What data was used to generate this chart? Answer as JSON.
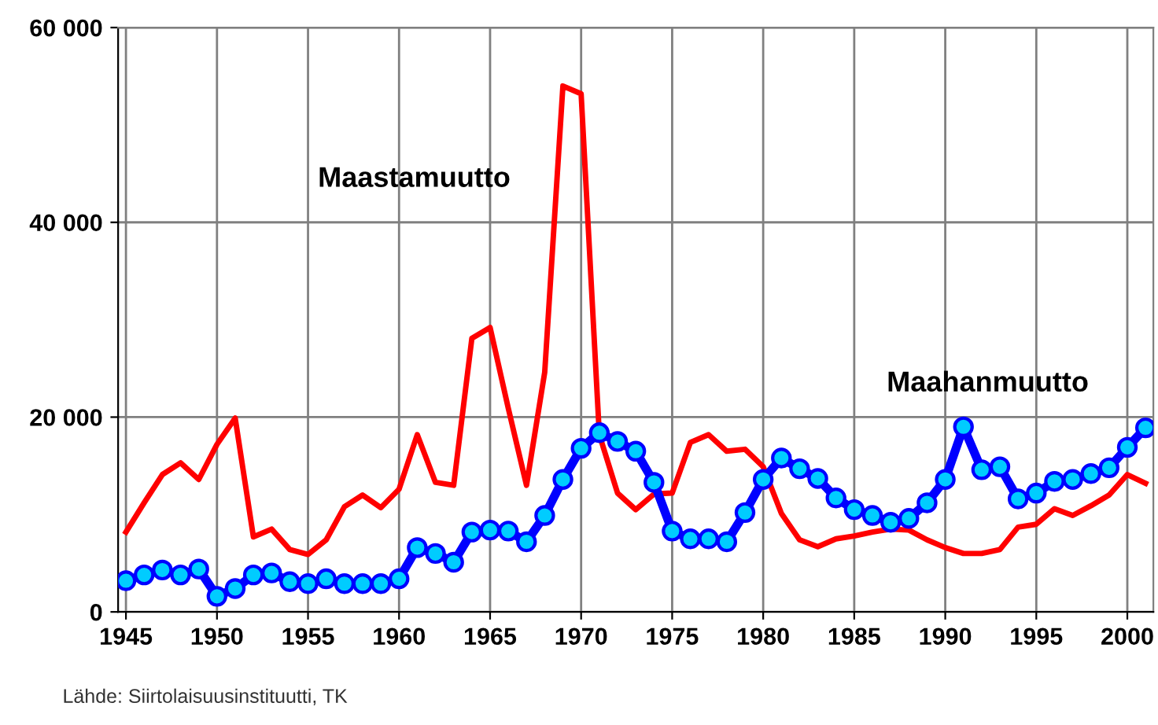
{
  "chart_data": {
    "type": "line",
    "x": [
      1945,
      1946,
      1947,
      1948,
      1949,
      1950,
      1951,
      1952,
      1953,
      1954,
      1955,
      1956,
      1957,
      1958,
      1959,
      1960,
      1961,
      1962,
      1963,
      1964,
      1965,
      1966,
      1967,
      1968,
      1969,
      1970,
      1971,
      1972,
      1973,
      1974,
      1975,
      1976,
      1977,
      1978,
      1979,
      1980,
      1981,
      1982,
      1983,
      1984,
      1985,
      1986,
      1987,
      1988,
      1989,
      1990,
      1991,
      1992,
      1993,
      1994,
      1995,
      1996,
      1997,
      1998,
      1999,
      2000,
      2001
    ],
    "series": [
      {
        "name": "Maastamuutto",
        "color": "#ff0000",
        "marker": "none",
        "values": [
          8200,
          11200,
          14100,
          15300,
          13600,
          17200,
          19900,
          7700,
          8500,
          6400,
          5900,
          7400,
          10800,
          12000,
          10700,
          12600,
          18200,
          13300,
          13000,
          28100,
          29200,
          20900,
          13000,
          24600,
          54000,
          53200,
          18200,
          12200,
          10500,
          12100,
          12200,
          17400,
          18200,
          16500,
          16700,
          14900,
          10100,
          7400,
          6700,
          7500,
          7800,
          8200,
          8500,
          8400,
          7400,
          6600,
          6000,
          6000,
          6400,
          8700,
          9000,
          10600,
          9900,
          10900,
          12000,
          14100,
          13200
        ]
      },
      {
        "name": "Maahanmuutto",
        "color": "#0000ff",
        "marker": "circle",
        "values": [
          3200,
          3800,
          4300,
          3800,
          4400,
          1600,
          2400,
          3800,
          4000,
          3100,
          2900,
          3400,
          2900,
          2900,
          2900,
          3400,
          6600,
          6000,
          5100,
          8200,
          8400,
          8300,
          7200,
          9900,
          13600,
          16800,
          18400,
          17500,
          16500,
          13300,
          8300,
          7500,
          7500,
          7200,
          10200,
          13600,
          15800,
          14700,
          13700,
          11700,
          10500,
          9900,
          9200,
          9600,
          11200,
          13600,
          19000,
          14600,
          14900,
          11600,
          12200,
          13400,
          13600,
          14200,
          14800,
          16900,
          18900
        ]
      }
    ],
    "xlim": [
      1944.57,
      2001.43
    ],
    "xticks": [
      1945,
      1950,
      1955,
      1960,
      1965,
      1970,
      1975,
      1980,
      1985,
      1990,
      1995,
      2000
    ],
    "ylim": [
      0,
      60000
    ],
    "yticks": [
      {
        "value": 0,
        "label": "0"
      },
      {
        "value": 20000,
        "label": "20 000"
      },
      {
        "value": 40000,
        "label": "40 000"
      },
      {
        "value": 60000,
        "label": "60 000"
      }
    ],
    "grid": true,
    "legend": false,
    "line_style": "solid",
    "annotations": [
      "Lähde: Siirtolaisuusinstituutti, TK"
    ]
  }
}
